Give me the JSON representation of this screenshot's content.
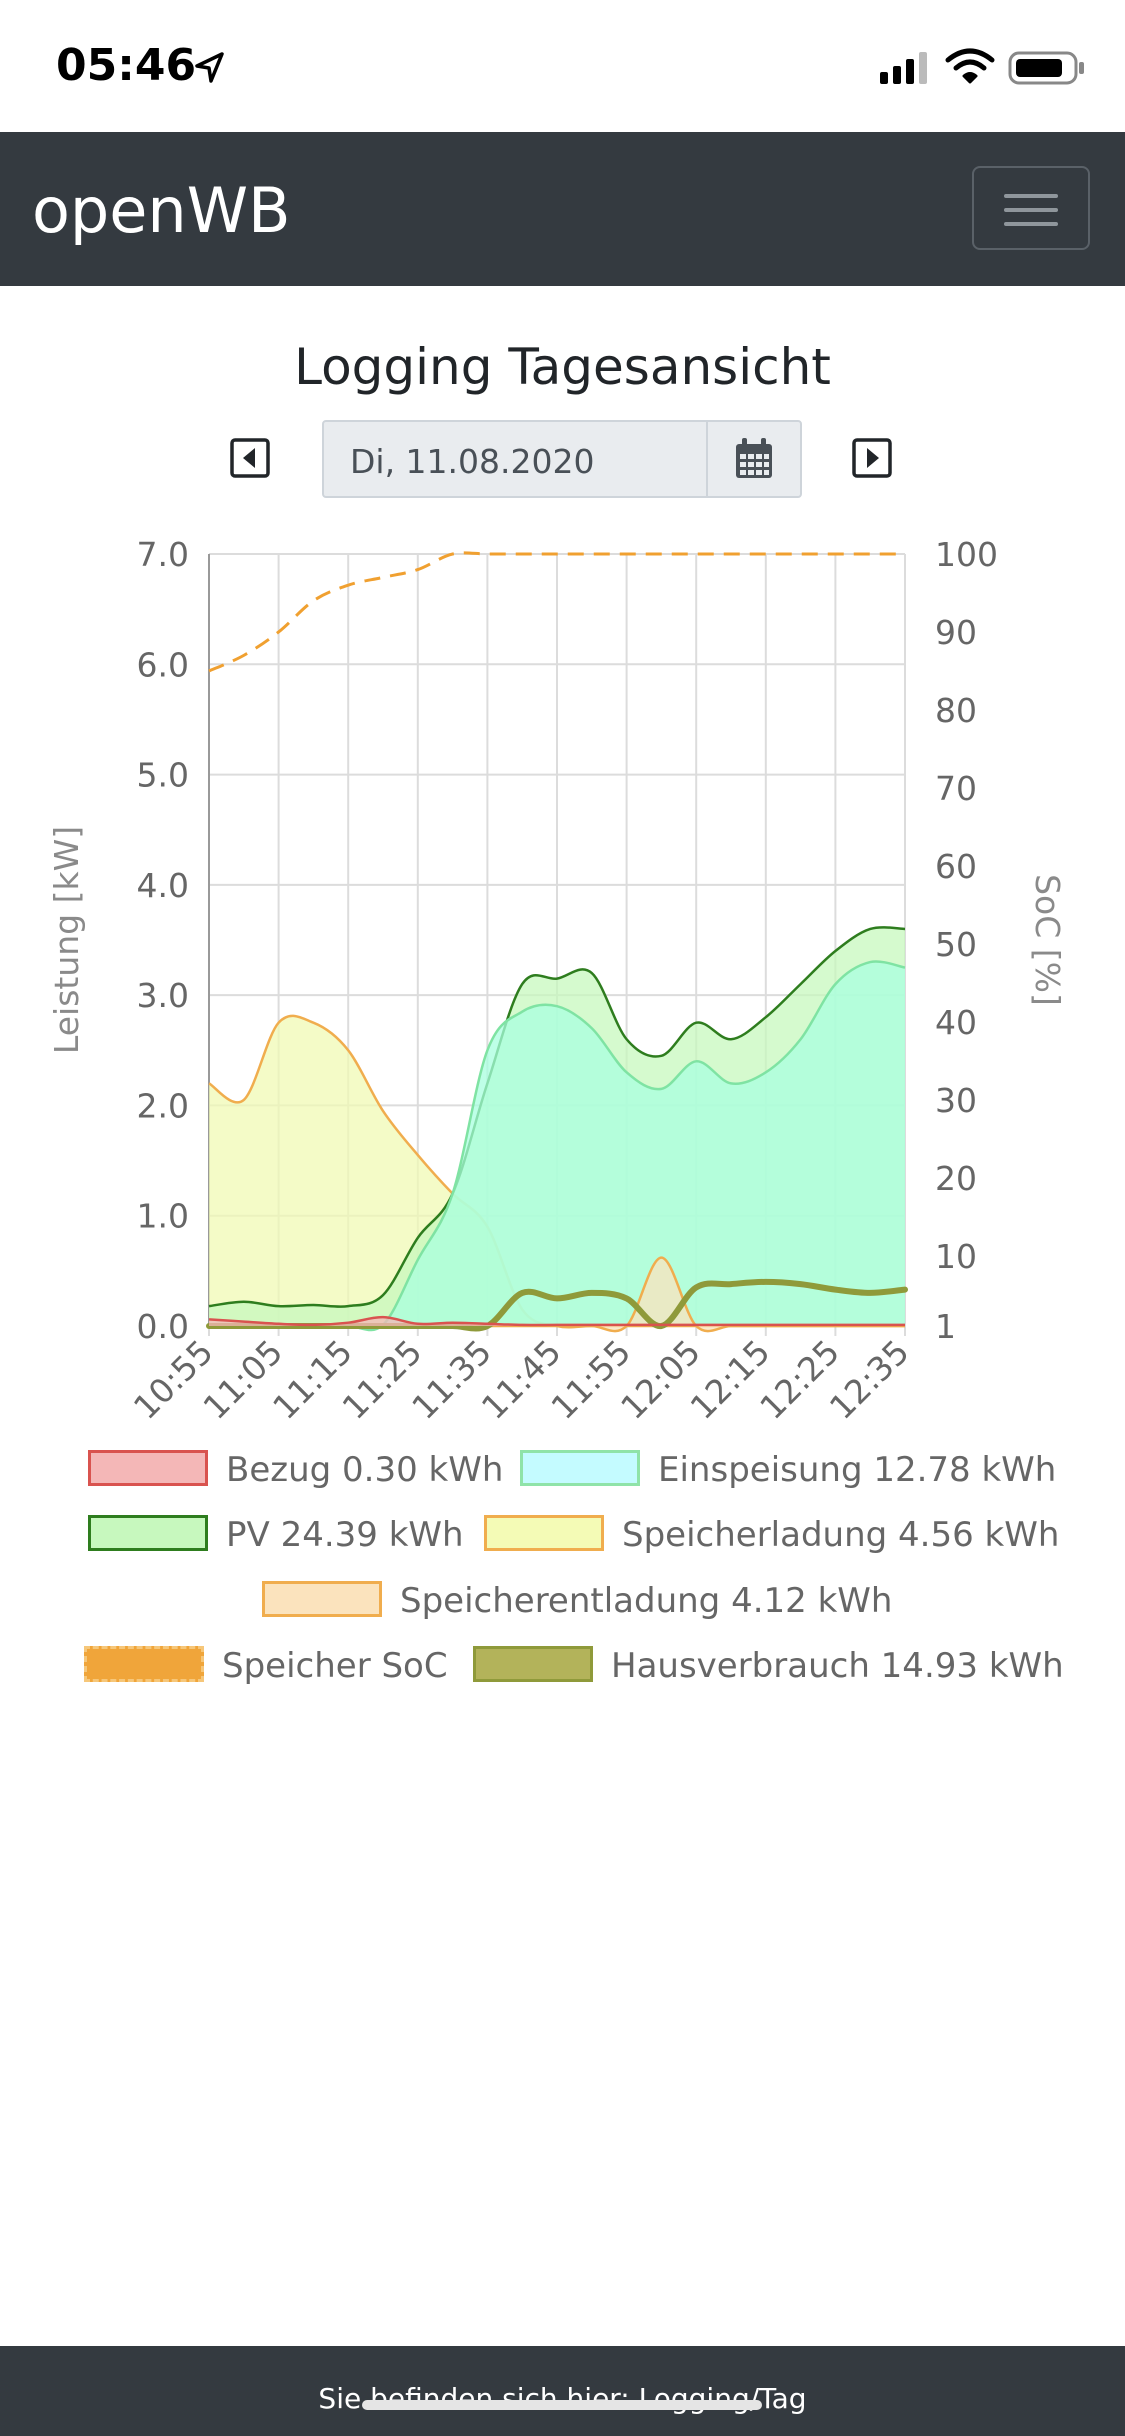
{
  "status_bar": {
    "time": "05:46",
    "icons": [
      "location-arrow-icon",
      "cellular-signal-icon",
      "wifi-icon",
      "battery-icon"
    ]
  },
  "navbar": {
    "brand": "openWB",
    "menu_icon": "hamburger-menu-icon",
    "background": "#343a40"
  },
  "page": {
    "title": "Logging Tagesansicht"
  },
  "date_nav": {
    "prev_icon": "caret-left-square-icon",
    "next_icon": "caret-right-square-icon",
    "date_value": "Di, 11.08.2020",
    "calendar_icon": "calendar-icon"
  },
  "chart_data": {
    "type": "area",
    "xlabels": [
      "10:55",
      "11:05",
      "11:15",
      "11:25",
      "11:35",
      "11:45",
      "11:55",
      "12:05",
      "12:15",
      "12:25",
      "12:35"
    ],
    "y_left": {
      "label": "Leistung [kW]",
      "ticks": [
        "0.0",
        "1.0",
        "2.0",
        "3.0",
        "4.0",
        "5.0",
        "6.0",
        "7.0"
      ],
      "range": [
        0,
        7
      ]
    },
    "y_right": {
      "label": "SoC [%]",
      "ticks": [
        "1",
        "10",
        "20",
        "30",
        "40",
        "50",
        "60",
        "70",
        "80",
        "90",
        "100"
      ],
      "range": [
        1,
        100
      ]
    },
    "grid": true,
    "x_minutes_from_start": [
      0,
      5,
      10,
      15,
      20,
      25,
      30,
      35,
      40,
      45,
      50,
      55,
      60,
      65,
      70,
      75,
      80,
      85,
      90,
      95,
      100
    ],
    "series": [
      {
        "name": "Bezug",
        "total": "0.30 kWh",
        "axis": "left",
        "fill": "#f4b7b7",
        "stroke": "#d9534f",
        "values": [
          0.06,
          0.04,
          0.02,
          0.01,
          0.03,
          0.08,
          0.02,
          0.03,
          0.02,
          0.01,
          0.01,
          0.01,
          0.01,
          0.01,
          0.01,
          0.01,
          0.01,
          0.01,
          0.01,
          0.01,
          0.01
        ]
      },
      {
        "name": "Einspeisung",
        "total": "12.78 kWh",
        "axis": "left",
        "fill": "#a8ffdf",
        "stroke": "#7fe3a3",
        "values": [
          0,
          0,
          0,
          0,
          0,
          0.01,
          0.6,
          1.2,
          2.5,
          2.85,
          2.9,
          2.7,
          2.3,
          2.15,
          2.4,
          2.2,
          2.3,
          2.6,
          3.1,
          3.3,
          3.25
        ]
      },
      {
        "name": "PV",
        "total": "24.39 kWh",
        "axis": "left",
        "fill": "#c7f8be",
        "stroke": "#2e7d1e",
        "values": [
          0.18,
          0.22,
          0.18,
          0.19,
          0.18,
          0.28,
          0.8,
          1.2,
          2.2,
          3.1,
          3.15,
          3.2,
          2.6,
          2.45,
          2.75,
          2.6,
          2.8,
          3.1,
          3.4,
          3.6,
          3.6
        ]
      },
      {
        "name": "Speicherladung",
        "total": "4.56 kWh",
        "axis": "left",
        "fill": "#f0fab4",
        "stroke": "#f0ad4e",
        "values": [
          2.2,
          2.05,
          2.75,
          2.75,
          2.5,
          1.95,
          1.55,
          1.2,
          0.9,
          0.15,
          0,
          0,
          0,
          0,
          0,
          0,
          0,
          0,
          0,
          0,
          0
        ]
      },
      {
        "name": "Speicherentladung",
        "total": "4.12 kWh",
        "axis": "left",
        "fill": "#fbe3bd",
        "stroke": "#f0ad4e",
        "values": [
          0,
          0,
          0,
          0,
          0,
          0,
          0,
          0,
          0,
          0,
          0,
          0,
          0,
          0.62,
          0,
          0,
          0,
          0,
          0,
          0,
          0
        ]
      },
      {
        "name": "Speicher SoC",
        "total": "",
        "axis": "right",
        "stroke": "#f0a030",
        "dashed": true,
        "values": [
          85,
          87,
          90,
          94,
          96,
          97,
          98,
          100,
          100,
          100,
          100,
          100,
          100,
          100,
          100,
          100,
          100,
          100,
          100,
          100,
          100
        ]
      },
      {
        "name": "Hausverbrauch",
        "total": "14.93 kWh",
        "axis": "left",
        "fill": "#b3b35a",
        "stroke": "#8f9a3a",
        "values": [
          0,
          0,
          0,
          0,
          0,
          0,
          0,
          0,
          0,
          0.3,
          0.25,
          0.3,
          0.25,
          0.0,
          0.35,
          0.38,
          0.4,
          0.38,
          0.33,
          0.3,
          0.33
        ]
      }
    ]
  },
  "legend": [
    {
      "label": "Bezug 0.30 kWh",
      "fill": "#f4b7b7",
      "stroke": "#d9534f",
      "dashed": false
    },
    {
      "label": "Einspeisung 12.78 kWh",
      "fill": "#c4fbff",
      "stroke": "#8fe3a8",
      "dashed": false
    },
    {
      "label": "PV 24.39 kWh",
      "fill": "#c7f8be",
      "stroke": "#2e7d1e",
      "dashed": false
    },
    {
      "label": "Speicherladung 4.56 kWh",
      "fill": "#f4fbb6",
      "stroke": "#f0ad4e",
      "dashed": false
    },
    {
      "label": "Speicherentladung 4.12 kWh",
      "fill": "#fbe3bd",
      "stroke": "#f0ad4e",
      "dashed": false
    },
    {
      "label": "Speicher SoC",
      "fill": "#f0a53a",
      "stroke": "#f6c77a",
      "dashed": true
    },
    {
      "label": "Hausverbrauch 14.93 kWh",
      "fill": "#b3b35a",
      "stroke": "#8f9a3a",
      "dashed": false
    }
  ],
  "footer": {
    "text": "Sie befinden sich hier: Logging/Tag"
  }
}
